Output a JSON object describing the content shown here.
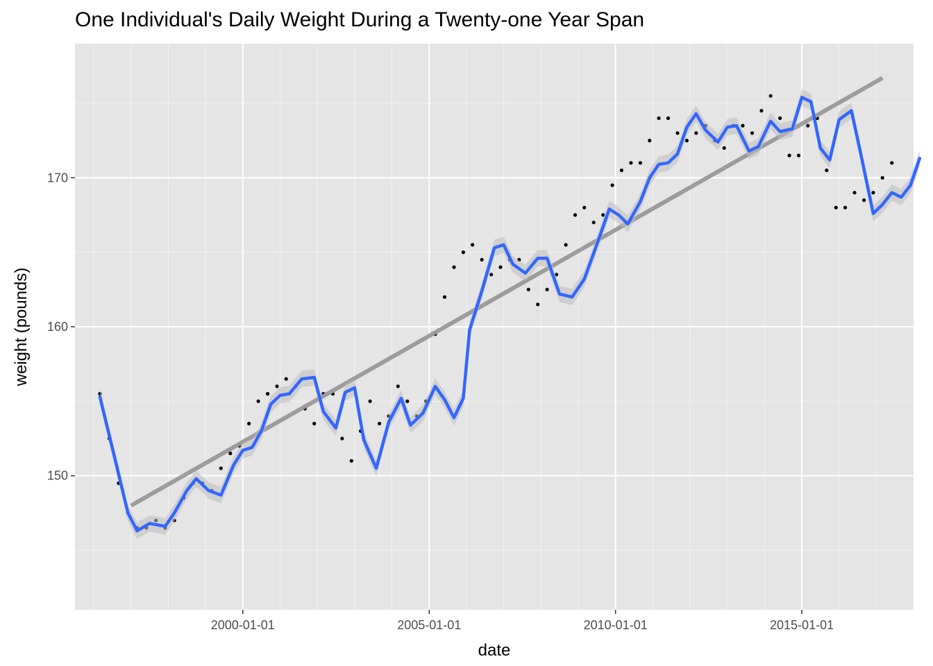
{
  "chart_data": {
    "type": "scatter",
    "title": "One Individual's Daily Weight During a Twenty-one Year Span",
    "xlabel": "date",
    "ylabel": "weight (pounds)",
    "xlim": [
      "1995-07-01",
      "2017-12-31"
    ],
    "ylim": [
      141.0,
      179.0
    ],
    "x_ticks": [
      "2000-01-01",
      "2005-01-01",
      "2010-01-01",
      "2015-01-01"
    ],
    "y_ticks": [
      150,
      160,
      170
    ],
    "grid": true,
    "legend": "none",
    "panel_background": "#e5e5e5",
    "colors": {
      "points": "#000000",
      "smooth": "#3366ff",
      "trend": "#999999",
      "band": "#bdbdbd"
    },
    "series": [
      {
        "type": "scatter",
        "values": [
          [
            "1996-03-01",
            155.5
          ],
          [
            "1996-06-01",
            152.5
          ],
          [
            "1996-09-01",
            149.5
          ],
          [
            "1996-12-01",
            147.5
          ],
          [
            "1997-03-01",
            146.5
          ],
          [
            "1997-06-01",
            146.5
          ],
          [
            "1997-09-01",
            147.0
          ],
          [
            "1997-12-01",
            146.5
          ],
          [
            "1998-03-01",
            147.0
          ],
          [
            "1998-06-01",
            148.5
          ],
          [
            "1998-09-01",
            149.5
          ],
          [
            "1998-12-01",
            149.5
          ],
          [
            "1999-03-01",
            149.0
          ],
          [
            "1999-06-01",
            150.5
          ],
          [
            "1999-09-01",
            151.5
          ],
          [
            "1999-12-01",
            152.0
          ],
          [
            "2000-03-01",
            153.5
          ],
          [
            "2000-06-01",
            155.0
          ],
          [
            "2000-09-01",
            155.5
          ],
          [
            "2000-12-01",
            156.0
          ],
          [
            "2001-03-01",
            156.5
          ],
          [
            "2001-06-01",
            156.0
          ],
          [
            "2001-09-01",
            154.5
          ],
          [
            "2001-12-01",
            153.5
          ],
          [
            "2002-03-01",
            155.5
          ],
          [
            "2002-06-01",
            155.5
          ],
          [
            "2002-09-01",
            152.5
          ],
          [
            "2002-12-01",
            151.0
          ],
          [
            "2003-03-01",
            153.0
          ],
          [
            "2003-06-01",
            155.0
          ],
          [
            "2003-09-01",
            153.5
          ],
          [
            "2003-12-01",
            154.0
          ],
          [
            "2004-03-01",
            156.0
          ],
          [
            "2004-06-01",
            155.0
          ],
          [
            "2004-09-01",
            154.0
          ],
          [
            "2004-12-01",
            155.0
          ],
          [
            "2005-03-01",
            159.5
          ],
          [
            "2005-06-01",
            162.0
          ],
          [
            "2005-09-01",
            164.0
          ],
          [
            "2005-12-01",
            165.0
          ],
          [
            "2006-03-01",
            165.5
          ],
          [
            "2006-06-01",
            164.5
          ],
          [
            "2006-09-01",
            163.5
          ],
          [
            "2006-12-01",
            164.0
          ],
          [
            "2007-03-01",
            164.5
          ],
          [
            "2007-06-01",
            164.5
          ],
          [
            "2007-09-01",
            162.5
          ],
          [
            "2007-12-01",
            161.5
          ],
          [
            "2008-03-01",
            162.5
          ],
          [
            "2008-06-01",
            163.5
          ],
          [
            "2008-09-01",
            165.5
          ],
          [
            "2008-12-01",
            167.5
          ],
          [
            "2009-03-01",
            168.0
          ],
          [
            "2009-06-01",
            167.0
          ],
          [
            "2009-09-01",
            167.5
          ],
          [
            "2009-12-01",
            169.5
          ],
          [
            "2010-03-01",
            170.5
          ],
          [
            "2010-06-01",
            171.0
          ],
          [
            "2010-09-01",
            171.0
          ],
          [
            "2010-12-01",
            172.5
          ],
          [
            "2011-03-01",
            174.0
          ],
          [
            "2011-06-01",
            174.0
          ],
          [
            "2011-09-01",
            173.0
          ],
          [
            "2011-12-01",
            172.5
          ],
          [
            "2012-03-01",
            173.0
          ],
          [
            "2012-06-01",
            173.5
          ],
          [
            "2012-09-01",
            172.5
          ],
          [
            "2012-12-01",
            172.0
          ],
          [
            "2013-03-01",
            173.5
          ],
          [
            "2013-06-01",
            173.5
          ],
          [
            "2013-09-01",
            173.0
          ],
          [
            "2013-12-01",
            174.5
          ],
          [
            "2014-03-01",
            175.5
          ],
          [
            "2014-06-01",
            174.0
          ],
          [
            "2014-09-01",
            171.5
          ],
          [
            "2014-12-01",
            171.5
          ],
          [
            "2015-03-01",
            173.5
          ],
          [
            "2015-06-01",
            174.0
          ],
          [
            "2015-09-01",
            170.5
          ],
          [
            "2015-12-01",
            168.0
          ],
          [
            "2016-03-01",
            168.0
          ],
          [
            "2016-06-01",
            169.0
          ],
          [
            "2016-09-01",
            168.5
          ],
          [
            "2016-12-01",
            169.0
          ],
          [
            "2017-03-01",
            170.0
          ],
          [
            "2017-06-01",
            171.0
          ]
        ]
      },
      {
        "type": "line",
        "values": [
          [
            "1996-03-01",
            155.3
          ],
          [
            "1996-08-01",
            151.0
          ],
          [
            "1996-12-01",
            147.5
          ],
          [
            "1997-03-01",
            146.3
          ],
          [
            "1997-07-01",
            146.8
          ],
          [
            "1997-12-01",
            146.6
          ],
          [
            "1998-03-01",
            147.5
          ],
          [
            "1998-07-01",
            149.0
          ],
          [
            "1998-10-01",
            149.8
          ],
          [
            "1999-02-01",
            149.0
          ],
          [
            "1999-06-01",
            148.7
          ],
          [
            "1999-10-01",
            150.7
          ],
          [
            "2000-01-01",
            151.7
          ],
          [
            "2000-04-01",
            151.9
          ],
          [
            "2000-07-01",
            153.0
          ],
          [
            "2000-10-01",
            154.8
          ],
          [
            "2001-01-01",
            155.4
          ],
          [
            "2001-04-01",
            155.5
          ],
          [
            "2001-08-01",
            156.5
          ],
          [
            "2001-12-01",
            156.6
          ],
          [
            "2002-03-01",
            154.3
          ],
          [
            "2002-07-01",
            153.2
          ],
          [
            "2002-10-01",
            155.6
          ],
          [
            "2003-01-01",
            155.9
          ],
          [
            "2003-04-01",
            152.4
          ],
          [
            "2003-08-01",
            150.5
          ],
          [
            "2003-12-01",
            153.6
          ],
          [
            "2004-04-01",
            155.2
          ],
          [
            "2004-07-01",
            153.4
          ],
          [
            "2004-11-01",
            154.2
          ],
          [
            "2005-03-01",
            156.0
          ],
          [
            "2005-06-01",
            155.1
          ],
          [
            "2005-09-01",
            153.9
          ],
          [
            "2005-12-01",
            155.2
          ],
          [
            "2006-02-01",
            159.8
          ],
          [
            "2006-06-01",
            162.4
          ],
          [
            "2006-10-01",
            165.3
          ],
          [
            "2007-01-01",
            165.5
          ],
          [
            "2007-04-01",
            164.2
          ],
          [
            "2007-08-01",
            163.6
          ],
          [
            "2007-12-01",
            164.6
          ],
          [
            "2008-03-01",
            164.6
          ],
          [
            "2008-07-01",
            162.2
          ],
          [
            "2008-11-01",
            162.0
          ],
          [
            "2009-03-01",
            163.2
          ],
          [
            "2009-07-01",
            165.5
          ],
          [
            "2009-11-01",
            167.9
          ],
          [
            "2010-02-01",
            167.5
          ],
          [
            "2010-05-01",
            166.9
          ],
          [
            "2010-09-01",
            168.4
          ],
          [
            "2010-12-01",
            170.0
          ],
          [
            "2011-03-01",
            170.9
          ],
          [
            "2011-06-01",
            171.0
          ],
          [
            "2011-09-01",
            171.6
          ],
          [
            "2011-12-01",
            173.4
          ],
          [
            "2012-03-01",
            174.3
          ],
          [
            "2012-06-01",
            173.2
          ],
          [
            "2012-10-01",
            172.4
          ],
          [
            "2013-01-01",
            173.4
          ],
          [
            "2013-04-01",
            173.5
          ],
          [
            "2013-08-01",
            171.8
          ],
          [
            "2013-11-01",
            172.1
          ],
          [
            "2014-03-01",
            173.8
          ],
          [
            "2014-06-01",
            173.1
          ],
          [
            "2014-10-01",
            173.3
          ],
          [
            "2015-01-01",
            175.4
          ],
          [
            "2015-04-01",
            175.1
          ],
          [
            "2015-07-01",
            172.0
          ],
          [
            "2015-10-01",
            171.2
          ],
          [
            "2016-01-01",
            173.9
          ],
          [
            "2016-05-01",
            174.5
          ],
          [
            "2016-08-01",
            171.6
          ],
          [
            "2016-12-01",
            167.6
          ],
          [
            "2017-03-01",
            168.2
          ],
          [
            "2017-06-01",
            169.0
          ],
          [
            "2017-09-01",
            168.7
          ],
          [
            "2017-12-01",
            169.5
          ],
          [
            "2018-03-01",
            171.3
          ]
        ]
      },
      {
        "type": "line",
        "values": [
          [
            "1997-01-01",
            148.0
          ],
          [
            "2017-03-01",
            176.7
          ]
        ]
      }
    ]
  }
}
